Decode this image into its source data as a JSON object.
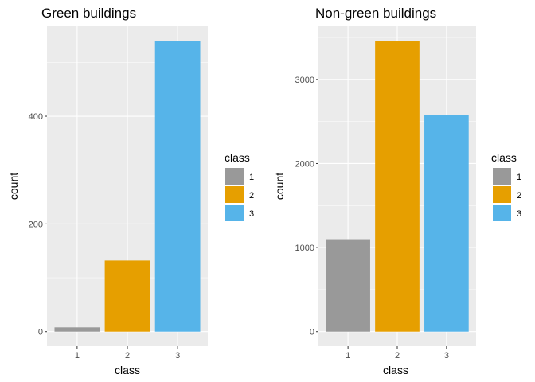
{
  "chart_data": [
    {
      "type": "bar",
      "title": "Green buildings",
      "xlabel": "class",
      "ylabel": "count",
      "categories": [
        "1",
        "2",
        "3"
      ],
      "values": [
        8,
        132,
        540
      ],
      "ylim": [
        -27,
        567
      ],
      "yticks": [
        0,
        200,
        400
      ],
      "yminor": [
        100,
        300,
        500
      ],
      "colors": [
        "#999999",
        "#E69F00",
        "#56B4E9"
      ],
      "grid": true,
      "legend": {
        "title": "class",
        "placement": "right",
        "items": [
          {
            "label": "1",
            "color": "#999999"
          },
          {
            "label": "2",
            "color": "#E69F00"
          },
          {
            "label": "3",
            "color": "#56B4E9"
          }
        ]
      }
    },
    {
      "type": "bar",
      "title": "Non-green buildings",
      "xlabel": "class",
      "ylabel": "count",
      "categories": [
        "1",
        "2",
        "3"
      ],
      "values": [
        1100,
        3460,
        2580
      ],
      "ylim": [
        -173,
        3633
      ],
      "yticks": [
        0,
        1000,
        2000,
        3000
      ],
      "yminor": [
        500,
        1500,
        2500,
        3500
      ],
      "colors": [
        "#999999",
        "#E69F00",
        "#56B4E9"
      ],
      "grid": true,
      "legend": {
        "title": "class",
        "placement": "right",
        "items": [
          {
            "label": "1",
            "color": "#999999"
          },
          {
            "label": "2",
            "color": "#E69F00"
          },
          {
            "label": "3",
            "color": "#56B4E9"
          }
        ]
      }
    }
  ]
}
